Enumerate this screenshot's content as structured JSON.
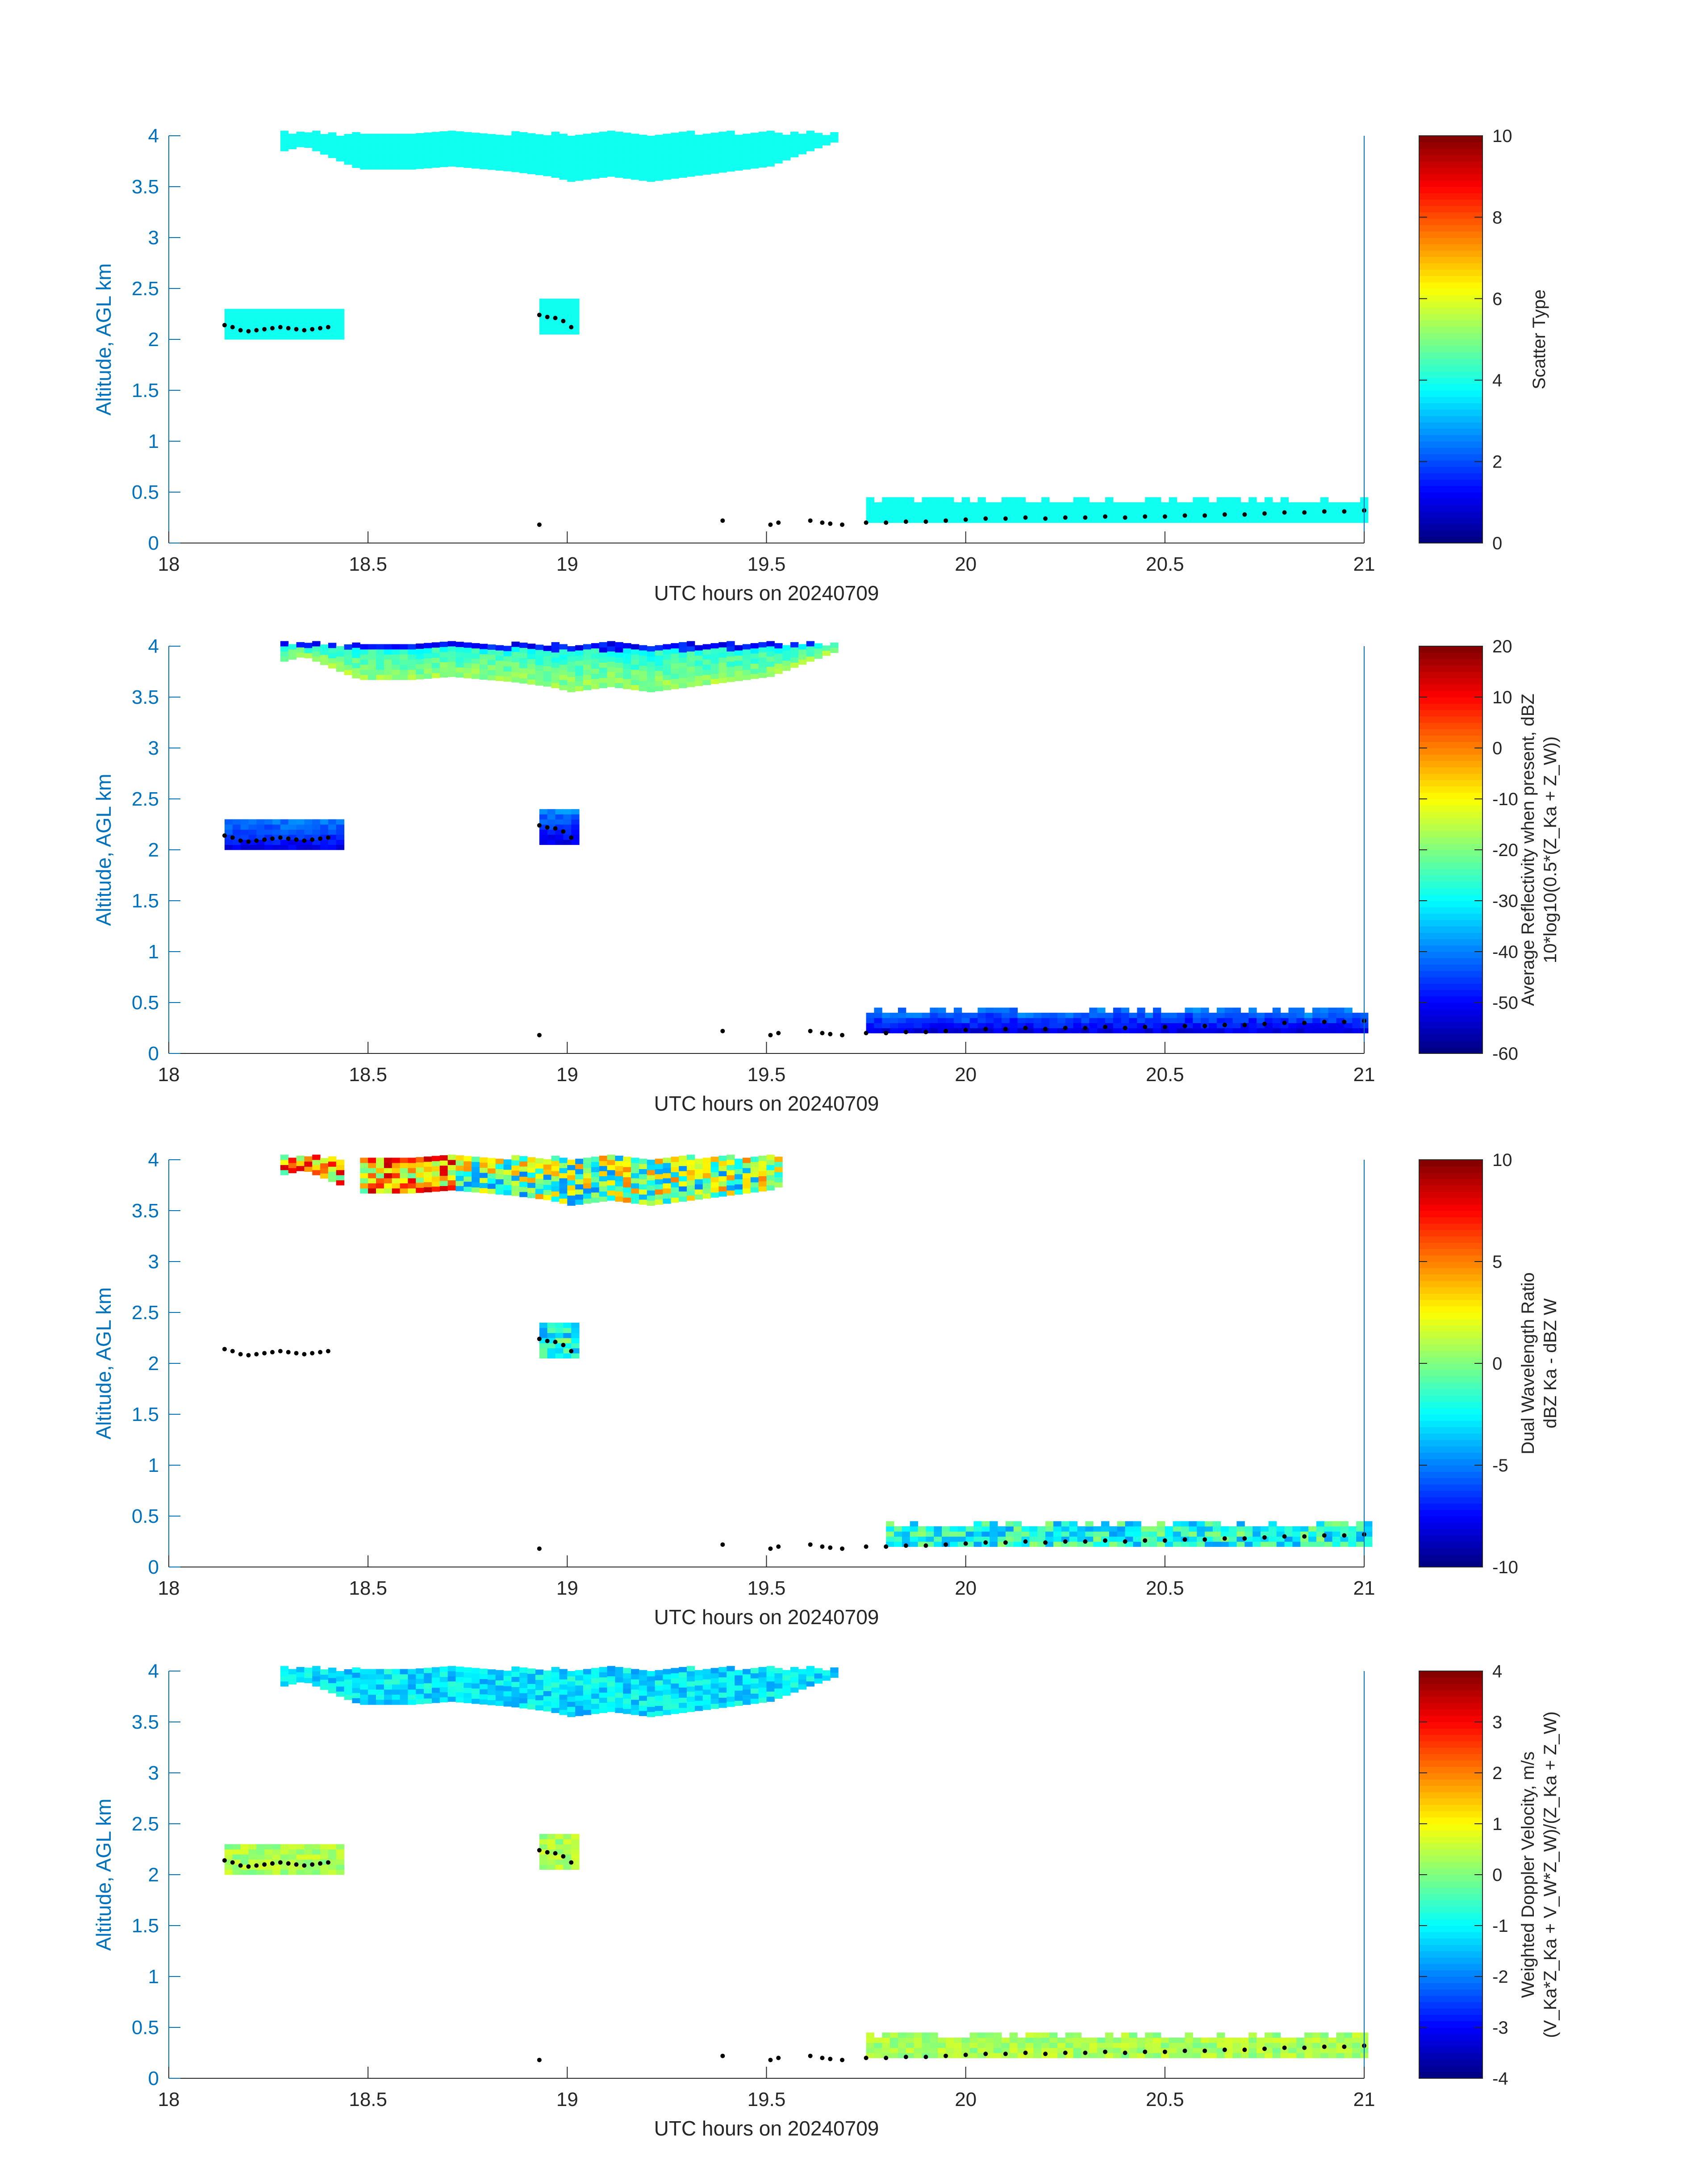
{
  "chart_data": [
    {
      "type": "heatmap",
      "xlabel": "UTC hours on 20240709",
      "ylabel": "Altitude, AGL km",
      "xlim": [
        18,
        21
      ],
      "ylim": [
        0,
        4
      ],
      "xticks": [
        18,
        18.5,
        19,
        19.5,
        20,
        20.5,
        21
      ],
      "yticks": [
        0,
        0.5,
        1,
        1.5,
        2,
        2.5,
        3,
        3.5,
        4
      ],
      "colorbar": {
        "label_lines": [
          "Scatter Type"
        ],
        "range": [
          0,
          10
        ],
        "ticks": [
          0,
          2,
          4,
          6,
          8,
          10
        ],
        "colormap": "jet"
      },
      "mode": "scatter_type",
      "value": 3.9
    },
    {
      "type": "heatmap",
      "xlabel": "UTC hours on 20240709",
      "ylabel": "Altitude, AGL km",
      "xlim": [
        18,
        21
      ],
      "ylim": [
        0,
        4
      ],
      "xticks": [
        18,
        18.5,
        19,
        19.5,
        20,
        20.5,
        21
      ],
      "yticks": [
        0,
        0.5,
        1,
        1.5,
        2,
        2.5,
        3,
        3.5,
        4
      ],
      "colorbar": {
        "label_lines": [
          "Average Reflectivity when present, dBZ",
          "10*log10(0.5*(Z_Ka + Z_W))"
        ],
        "range": [
          -60,
          20
        ],
        "ticks": [
          -60,
          -50,
          -40,
          -30,
          -20,
          -10,
          0,
          10,
          20
        ],
        "colormap": "jet"
      },
      "mode": "reflectivity"
    },
    {
      "type": "heatmap",
      "xlabel": "UTC hours on 20240709",
      "ylabel": "Altitude, AGL km",
      "xlim": [
        18,
        21
      ],
      "ylim": [
        0,
        4
      ],
      "xticks": [
        18,
        18.5,
        19,
        19.5,
        20,
        20.5,
        21
      ],
      "yticks": [
        0,
        0.5,
        1,
        1.5,
        2,
        2.5,
        3,
        3.5,
        4
      ],
      "colorbar": {
        "label_lines": [
          "Dual Wavelength Ratio",
          "dBZ Ka - dBZ W"
        ],
        "range": [
          -10,
          10
        ],
        "ticks": [
          -10,
          -5,
          0,
          5,
          10
        ],
        "colormap": "jet"
      },
      "mode": "dwr"
    },
    {
      "type": "heatmap",
      "xlabel": "UTC hours on 20240709",
      "ylabel": "Altitude, AGL km",
      "xlim": [
        18,
        21
      ],
      "ylim": [
        0,
        4
      ],
      "xticks": [
        18,
        18.5,
        19,
        19.5,
        20,
        20.5,
        21
      ],
      "yticks": [
        0,
        0.5,
        1,
        1.5,
        2,
        2.5,
        3,
        3.5,
        4
      ],
      "colorbar": {
        "label_lines": [
          "Weighted Doppler Velocity, m/s",
          "(V_Ka*Z_Ka + V_W*Z_W)/(Z_Ka + Z_W)"
        ],
        "range": [
          -4,
          4
        ],
        "ticks": [
          -4,
          -3,
          -2,
          -1,
          0,
          1,
          2,
          3,
          4
        ],
        "colormap": "jet"
      },
      "mode": "velocity"
    }
  ],
  "cloud_regions": {
    "upper_layer": {
      "x": [
        18.28,
        19.67
      ],
      "top_km": 4.0,
      "base_profile": [
        [
          18.28,
          3.85
        ],
        [
          18.33,
          3.9
        ],
        [
          18.42,
          3.75
        ],
        [
          18.47,
          3.67
        ],
        [
          18.6,
          3.67
        ],
        [
          18.7,
          3.7
        ],
        [
          18.85,
          3.65
        ],
        [
          18.95,
          3.6
        ],
        [
          19.0,
          3.55
        ],
        [
          19.1,
          3.6
        ],
        [
          19.2,
          3.55
        ],
        [
          19.3,
          3.6
        ],
        [
          19.4,
          3.65
        ],
        [
          19.5,
          3.7
        ],
        [
          19.6,
          3.85
        ],
        [
          19.67,
          3.95
        ]
      ]
    },
    "mid_layer_1": {
      "x": [
        18.14,
        18.42
      ],
      "base_km": 2.0,
      "top_km": 2.25
    },
    "mid_layer_2": {
      "x": [
        18.93,
        19.01
      ],
      "base_km": 2.05,
      "top_km": 2.35
    },
    "low_layer": {
      "x": [
        19.75,
        21.0
      ],
      "base_km": 0.2,
      "top_km": 0.45
    }
  },
  "cloud_top_dots": [
    [
      18.14,
      2.14
    ],
    [
      18.16,
      2.12
    ],
    [
      18.18,
      2.09
    ],
    [
      18.2,
      2.08
    ],
    [
      18.22,
      2.09
    ],
    [
      18.24,
      2.1
    ],
    [
      18.26,
      2.11
    ],
    [
      18.28,
      2.12
    ],
    [
      18.3,
      2.11
    ],
    [
      18.32,
      2.1
    ],
    [
      18.34,
      2.09
    ],
    [
      18.36,
      2.1
    ],
    [
      18.38,
      2.11
    ],
    [
      18.4,
      2.12
    ],
    [
      18.93,
      2.24
    ],
    [
      18.95,
      2.22
    ],
    [
      18.97,
      2.21
    ],
    [
      18.99,
      2.18
    ],
    [
      19.01,
      2.12
    ],
    [
      18.93,
      0.18
    ],
    [
      19.39,
      0.22
    ],
    [
      19.51,
      0.18
    ],
    [
      19.53,
      0.2
    ],
    [
      19.61,
      0.22
    ],
    [
      19.64,
      0.2
    ],
    [
      19.66,
      0.19
    ],
    [
      19.69,
      0.18
    ],
    [
      19.75,
      0.2
    ],
    [
      19.8,
      0.2
    ],
    [
      19.85,
      0.21
    ],
    [
      19.9,
      0.21
    ],
    [
      19.95,
      0.22
    ],
    [
      20.0,
      0.23
    ],
    [
      20.05,
      0.24
    ],
    [
      20.1,
      0.24
    ],
    [
      20.15,
      0.25
    ],
    [
      20.2,
      0.24
    ],
    [
      20.25,
      0.25
    ],
    [
      20.3,
      0.25
    ],
    [
      20.35,
      0.26
    ],
    [
      20.4,
      0.25
    ],
    [
      20.45,
      0.26
    ],
    [
      20.5,
      0.26
    ],
    [
      20.55,
      0.27
    ],
    [
      20.6,
      0.27
    ],
    [
      20.65,
      0.28
    ],
    [
      20.7,
      0.28
    ],
    [
      20.75,
      0.29
    ],
    [
      20.8,
      0.3
    ],
    [
      20.85,
      0.3
    ],
    [
      20.9,
      0.31
    ],
    [
      20.95,
      0.31
    ],
    [
      21.0,
      0.32
    ]
  ]
}
